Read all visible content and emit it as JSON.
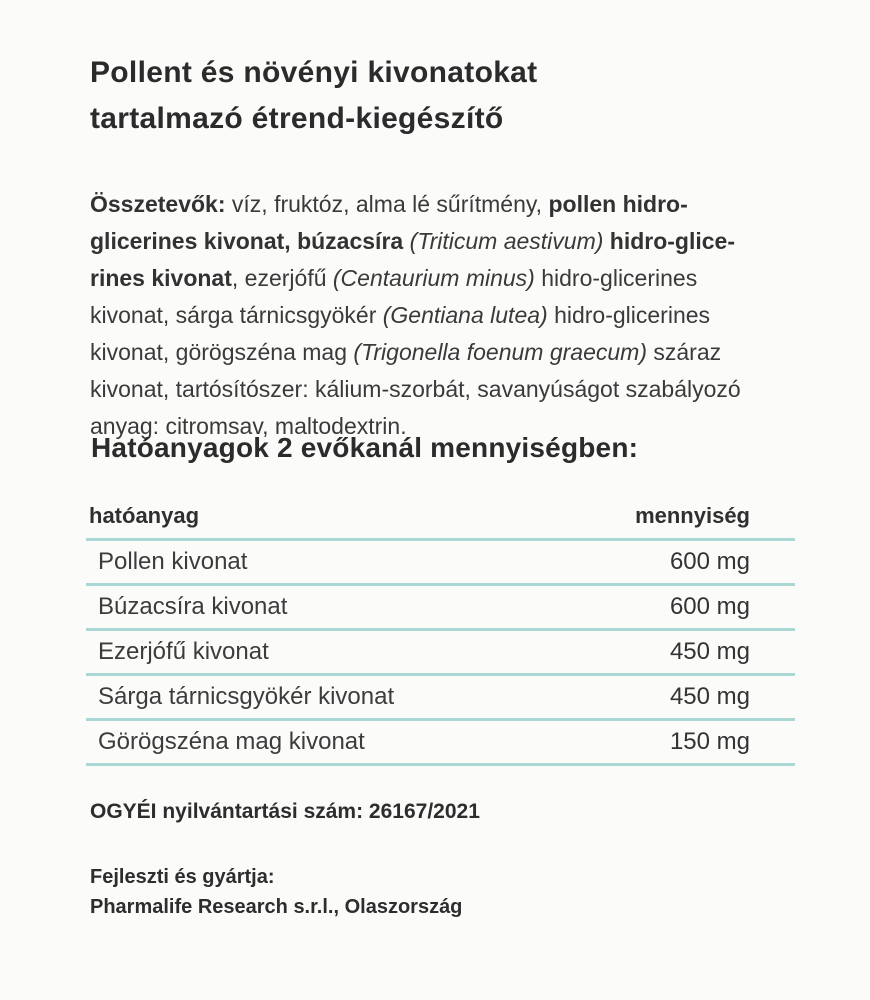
{
  "title": {
    "line1": "Pollent és növényi kivonatokat",
    "line2": "tartalmazó étrend-kiegészítő"
  },
  "ingredients": {
    "lines": [
      {
        "segments": [
          {
            "text": "Összetevők: "
          },
          {
            "text": "víz, fruktóz, alma lé sűrítmény, "
          },
          {
            "text": "pollen hidro-"
          }
        ]
      },
      {
        "segments": [
          {
            "text": "glicerines kivonat, búzacsíra "
          },
          {
            "text": "(Triticum aestivum)"
          },
          {
            "text": " hidro-glice-"
          }
        ]
      },
      {
        "segments": [
          {
            "text": "rines kivonat"
          },
          {
            "text": ", ezerjófű "
          },
          {
            "text": "(Centaurium minus)"
          },
          {
            "text": " hidro-glicerines"
          }
        ]
      },
      {
        "segments": [
          {
            "text": "kivonat, sárga tárnicsgyökér "
          },
          {
            "text": "(Gentiana lutea)"
          },
          {
            "text": " hidro-glicerines"
          }
        ]
      },
      {
        "segments": [
          {
            "text": "kivonat, görögszéna mag "
          },
          {
            "text": "(Trigonella foenum graecum)"
          },
          {
            "text": " száraz"
          }
        ]
      },
      {
        "segments": [
          {
            "text": "kivonat, tartósítószer: kálium-szorbát, savanyúságot szabályozó"
          }
        ]
      },
      {
        "segments": [
          {
            "text": "anyag: citromsav, maltodextrin."
          }
        ]
      }
    ]
  },
  "actives": {
    "heading": "Hatóanyagok 2 evőkanál mennyiségben:",
    "table": {
      "header": {
        "substance": "hatóanyag",
        "amount": "mennyiség"
      },
      "rows": [
        {
          "name": "Pollen kivonat",
          "amount": "600 mg"
        },
        {
          "name": "Búzacsíra kivonat",
          "amount": "600 mg"
        },
        {
          "name": "Ezerjófű kivonat",
          "amount": "450 mg"
        },
        {
          "name": "Sárga tárnicsgyökér kivonat",
          "amount": "450 mg"
        },
        {
          "name": "Görögszéna mag kivonat",
          "amount": "150 mg"
        }
      ]
    }
  },
  "registration": {
    "text": "OGYÉI nyilvántartási szám: 26167/2021"
  },
  "manufacturer": {
    "line1": "Fejleszti és gyártja:",
    "line2": "Pharmalife Research s.r.l., Olaszország"
  },
  "colors": {
    "accent_teal": "#a9d8d5",
    "heading_text": "#2b2b2b",
    "body_text": "#3a3a3a",
    "background": "#fbfbfa"
  }
}
